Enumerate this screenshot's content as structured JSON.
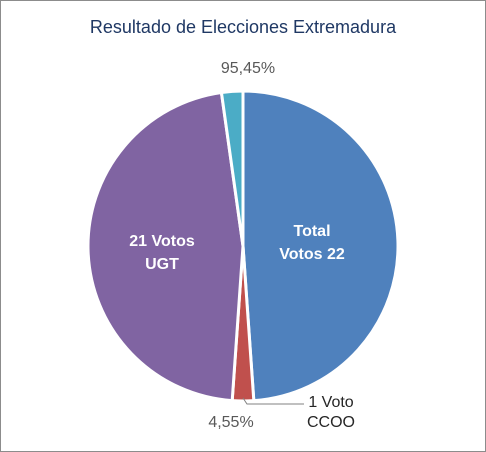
{
  "chart_data": {
    "type": "pie",
    "title": "Resultado de Elecciones Extremadura",
    "slices": [
      {
        "label_lines": [
          "Total",
          "Votos 22"
        ],
        "value": 22,
        "color": "#4f81bd"
      },
      {
        "label_lines": [
          "1 Voto",
          "CCOO"
        ],
        "value": 1,
        "color": "#c0504d"
      },
      {
        "label_lines": [
          "21 Votos",
          "UGT"
        ],
        "value": 21,
        "color": "#8064a2"
      },
      {
        "label_lines": [],
        "value": 1,
        "color": "#4bacc6"
      }
    ],
    "annotations": [
      "95,45%",
      "4,55%"
    ]
  }
}
